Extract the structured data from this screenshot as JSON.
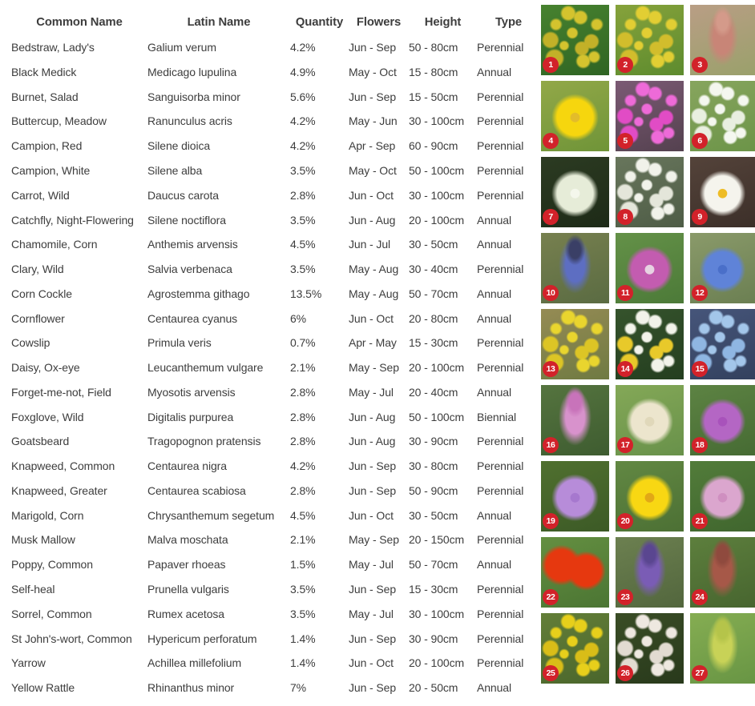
{
  "table": {
    "columns": [
      "Common Name",
      "Latin Name",
      "Quantity",
      "Flowers",
      "Height",
      "Type"
    ],
    "rows": [
      [
        "Bedstraw, Lady's",
        "Galium verum",
        "4.2%",
        "Jun - Sep",
        "50 - 80cm",
        "Perennial"
      ],
      [
        "Black Medick",
        "Medicago lupulina",
        "4.9%",
        "May - Oct",
        "15 - 80cm",
        "Annual"
      ],
      [
        "Burnet, Salad",
        "Sanguisorba minor",
        "5.6%",
        "Jun - Sep",
        "15 - 50cm",
        "Perennial"
      ],
      [
        "Buttercup, Meadow",
        "Ranunculus acris",
        "4.2%",
        "May - Jun",
        "30 - 100cm",
        "Perennial"
      ],
      [
        "Campion, Red",
        "Silene dioica",
        "4.2%",
        "Apr - Sep",
        "60 - 90cm",
        "Perennial"
      ],
      [
        "Campion, White",
        "Silene alba",
        "3.5%",
        "May - Oct",
        "50 - 100cm",
        "Perennial"
      ],
      [
        "Carrot, Wild",
        "Daucus carota",
        "2.8%",
        "Jun - Oct",
        "30 - 100cm",
        "Perennial"
      ],
      [
        "Catchfly, Night-Flowering",
        "Silene noctiflora",
        "3.5%",
        "Jun - Aug",
        "20 - 100cm",
        "Annual"
      ],
      [
        "Chamomile, Corn",
        "Anthemis arvensis",
        "4.5%",
        "Jun - Jul",
        "30 - 50cm",
        "Annual"
      ],
      [
        "Clary, Wild",
        "Salvia verbenaca",
        "3.5%",
        "May - Aug",
        "30 - 40cm",
        "Perennial"
      ],
      [
        "Corn Cockle",
        "Agrostemma githago",
        "13.5%",
        "May - Aug",
        "50 - 70cm",
        "Annual"
      ],
      [
        "Cornflower",
        "Centaurea cyanus",
        "6%",
        "Jun - Oct",
        "20 - 80cm",
        "Annual"
      ],
      [
        "Cowslip",
        "Primula veris",
        "0.7%",
        "Apr - May",
        "15 - 30cm",
        "Perennial"
      ],
      [
        "Daisy, Ox-eye",
        "Leucanthemum vulgare",
        "2.1%",
        "May - Sep",
        "20 - 100cm",
        "Perennial"
      ],
      [
        "Forget-me-not, Field",
        "Myosotis arvensis",
        "2.8%",
        "May - Jul",
        "20 - 40cm",
        "Annual"
      ],
      [
        "Foxglove, Wild",
        "Digitalis purpurea",
        "2.8%",
        "Jun - Aug",
        "50 - 100cm",
        "Biennial"
      ],
      [
        "Goatsbeard",
        "Tragopognon pratensis",
        "2.8%",
        "Jun - Aug",
        "30 - 90cm",
        "Perennial"
      ],
      [
        "Knapweed, Common",
        "Centaurea nigra",
        "4.2%",
        "Jun - Sep",
        "30 - 80cm",
        "Perennial"
      ],
      [
        "Knapweed, Greater",
        "Centaurea scabiosa",
        "2.8%",
        "Jun - Sep",
        "50 - 90cm",
        "Perennial"
      ],
      [
        "Marigold, Corn",
        "Chrysanthemum segetum",
        "4.5%",
        "Jun - Oct",
        "30 - 50cm",
        "Annual"
      ],
      [
        "Musk Mallow",
        "Malva moschata",
        "2.1%",
        "May - Sep",
        "20 - 150cm",
        "Perennial"
      ],
      [
        "Poppy, Common",
        "Papaver rhoeas",
        "1.5%",
        "May - Jul",
        "50 - 70cm",
        "Annual"
      ],
      [
        "Self-heal",
        "Prunella vulgaris",
        "3.5%",
        "Jun - Sep",
        "15 - 30cm",
        "Perennial"
      ],
      [
        "Sorrel, Common",
        "Rumex acetosa",
        "3.5%",
        "May - Jul",
        "30 - 100cm",
        "Perennial"
      ],
      [
        "St John's-wort, Common",
        "Hypericum perforatum",
        "1.4%",
        "Jun - Sep",
        "30 - 90cm",
        "Perennial"
      ],
      [
        "Yarrow",
        "Achillea millefolium",
        "1.4%",
        "Jun - Oct",
        "20 - 100cm",
        "Perennial"
      ],
      [
        "Yellow Rattle",
        "Rhinanthus minor",
        "7%",
        "Jun - Sep",
        "20 - 50cm",
        "Annual"
      ]
    ]
  },
  "badge": {
    "color": "#d2222a",
    "text_color": "#ffffff"
  },
  "text_color": "#3d3d3d",
  "photos": [
    {
      "num": "1",
      "name": "Bedstraw, Lady's",
      "pattern": "cluster",
      "bg": "#47822f",
      "bg2": "#2f6423",
      "flower": "#d4c32e",
      "flower2": "#c2b128"
    },
    {
      "num": "2",
      "name": "Black Medick",
      "pattern": "cluster",
      "bg": "#86a23b",
      "bg2": "#5d8b2e",
      "flower": "#e2ce33",
      "flower2": "#d2bd2c"
    },
    {
      "num": "3",
      "name": "Burnet, Salad",
      "pattern": "spike",
      "bg": "#b99e85",
      "bg2": "#9aa06b",
      "flower": "#c88577",
      "flower2": "#d49a8a"
    },
    {
      "num": "4",
      "name": "Buttercup, Meadow",
      "pattern": "bloom",
      "bg": "#92a848",
      "bg2": "#6f9438",
      "flower": "#f6d60e",
      "flower2": "#e3bc2a"
    },
    {
      "num": "5",
      "name": "Campion, Red",
      "pattern": "cluster",
      "bg": "#7b5a74",
      "bg2": "#54414f",
      "flower": "#ee6ad8",
      "flower2": "#e14cc5"
    },
    {
      "num": "6",
      "name": "Campion, White",
      "pattern": "cluster",
      "bg": "#87a55e",
      "bg2": "#6c9448",
      "flower": "#f4f7ef",
      "flower2": "#e9efe0"
    },
    {
      "num": "7",
      "name": "Carrot, Wild",
      "pattern": "bloom",
      "bg": "#2c3b22",
      "bg2": "#1d2a17",
      "flower": "#e6ecd8",
      "flower2": "#f4f7ec"
    },
    {
      "num": "8",
      "name": "Catchfly, Night-Flowering",
      "pattern": "cluster",
      "bg": "#68765c",
      "bg2": "#4e5c46",
      "flower": "#f1f2ea",
      "flower2": "#e4e6da"
    },
    {
      "num": "9",
      "name": "Chamomile, Corn",
      "pattern": "bloom",
      "bg": "#54433a",
      "bg2": "#3c2f29",
      "flower": "#f5f4ed",
      "flower2": "#eebc25"
    },
    {
      "num": "10",
      "name": "Clary, Wild",
      "pattern": "spike",
      "bg": "#77804f",
      "bg2": "#5a6b42",
      "flower": "#5d6ec2",
      "flower2": "#3a3f66"
    },
    {
      "num": "11",
      "name": "Corn Cockle",
      "pattern": "bloom",
      "bg": "#649148",
      "bg2": "#4c7a38",
      "flower": "#c35cb0",
      "flower2": "#e7d2e2"
    },
    {
      "num": "12",
      "name": "Cornflower",
      "pattern": "bloom",
      "bg": "#8a9a6a",
      "bg2": "#6b7f52",
      "flower": "#5f83d8",
      "flower2": "#4a6fc9"
    },
    {
      "num": "13",
      "name": "Cowslip",
      "pattern": "cluster",
      "bg": "#958b54",
      "bg2": "#6f7a42",
      "flower": "#e9d52e",
      "flower2": "#ddc525"
    },
    {
      "num": "14",
      "name": "Daisy, Ox-eye",
      "pattern": "cluster",
      "bg": "#35532c",
      "bg2": "#243e1f",
      "flower": "#f2f3ea",
      "flower2": "#e8c92a"
    },
    {
      "num": "15",
      "name": "Forget-me-not, Field",
      "pattern": "cluster",
      "bg": "#46557a",
      "bg2": "#33415e",
      "flower": "#a3c6ea",
      "flower2": "#8fb6e2"
    },
    {
      "num": "16",
      "name": "Foxglove, Wild",
      "pattern": "spike",
      "bg": "#55743f",
      "bg2": "#3e5c30",
      "flower": "#d892cc",
      "flower2": "#c873ba"
    },
    {
      "num": "17",
      "name": "Goatsbeard",
      "pattern": "bloom",
      "bg": "#84a857",
      "bg2": "#68914a",
      "flower": "#ece5cd",
      "flower2": "#e0d8ba"
    },
    {
      "num": "18",
      "name": "Knapweed, Common",
      "pattern": "bloom",
      "bg": "#5d8343",
      "bg2": "#466b33",
      "flower": "#b466c4",
      "flower2": "#a852bb"
    },
    {
      "num": "19",
      "name": "Knapweed, Greater",
      "pattern": "bloom",
      "bg": "#50702f",
      "bg2": "#3c5a26",
      "flower": "#b78cd9",
      "flower2": "#a678ce"
    },
    {
      "num": "20",
      "name": "Marigold, Corn",
      "pattern": "bloom",
      "bg": "#628843",
      "bg2": "#4c7034",
      "flower": "#f8d713",
      "flower2": "#e2a816"
    },
    {
      "num": "21",
      "name": "Musk Mallow",
      "pattern": "bloom",
      "bg": "#527c3a",
      "bg2": "#40662e",
      "flower": "#dba6ce",
      "flower2": "#cf8fc0"
    },
    {
      "num": "22",
      "name": "Poppy, Common",
      "pattern": "bloom2",
      "bg": "#648f41",
      "bg2": "#4b7533",
      "flower": "#e6380f",
      "flower2": "#c52b0c"
    },
    {
      "num": "23",
      "name": "Self-heal",
      "pattern": "spike",
      "bg": "#6c8050",
      "bg2": "#52663d",
      "flower": "#7a5cb5",
      "flower2": "#5a4690"
    },
    {
      "num": "24",
      "name": "Sorrel, Common",
      "pattern": "spike",
      "bg": "#5d7f3d",
      "bg2": "#47652f",
      "flower": "#a65848",
      "flower2": "#8f4a3e"
    },
    {
      "num": "25",
      "name": "St John's-wort, Common",
      "pattern": "cluster",
      "bg": "#637e38",
      "bg2": "#4a662c",
      "flower": "#e7cf1b",
      "flower2": "#d9bd18"
    },
    {
      "num": "26",
      "name": "Yarrow",
      "pattern": "cluster",
      "bg": "#3a4d26",
      "bg2": "#28391b",
      "flower": "#eee8e0",
      "flower2": "#e2dbd1"
    },
    {
      "num": "27",
      "name": "Yellow Rattle",
      "pattern": "spike",
      "bg": "#85ad52",
      "bg2": "#689544",
      "flower": "#c8d257",
      "flower2": "#b5c44a"
    }
  ]
}
